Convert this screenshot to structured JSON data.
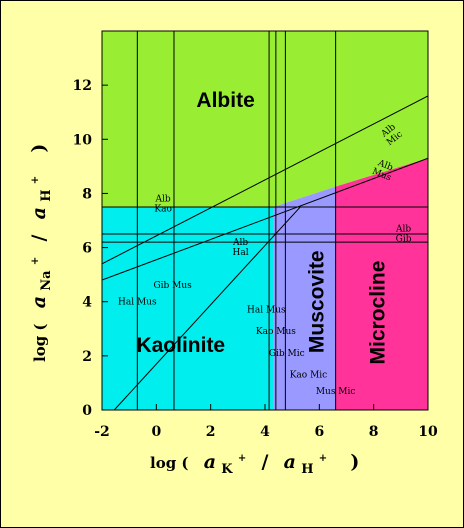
{
  "chart_data": {
    "type": "area",
    "title": "",
    "xlabel_parts": {
      "prefix": "log (",
      "num": "a",
      "num_sub": "K",
      "num_sup": "+",
      "slash": "/",
      "den": "a",
      "den_sub": "H",
      "den_sup": "+",
      "suffix": ")"
    },
    "ylabel_parts": {
      "prefix": "log (",
      "num": "a",
      "num_sub": "Na",
      "num_sup": "+",
      "slash": "/",
      "den": "a",
      "den_sub": "H",
      "den_sup": "+",
      "suffix": ")"
    },
    "xlim": [
      -2,
      10
    ],
    "ylim": [
      0,
      14
    ],
    "xticks": [
      -2,
      0,
      2,
      4,
      6,
      8,
      10
    ],
    "yticks": [
      0,
      2,
      4,
      6,
      8,
      10,
      12
    ],
    "xtick_labels": [
      "-2",
      "0",
      "2",
      "4",
      "6",
      "8",
      "10"
    ],
    "ytick_labels": [
      "0",
      "2",
      "4",
      "6",
      "8",
      "10",
      "12"
    ],
    "fields": [
      {
        "name": "Albite",
        "color": "#99ee33",
        "polygon": [
          [
            -2,
            7.5
          ],
          [
            4.3,
            7.5
          ],
          [
            6.6,
            8.25
          ],
          [
            10,
            9.3
          ],
          [
            10,
            14
          ],
          [
            -2,
            14
          ]
        ]
      },
      {
        "name": "Kaolinite",
        "color": "#00eeee",
        "polygon": [
          [
            -2,
            0
          ],
          [
            4.3,
            0
          ],
          [
            4.3,
            7.5
          ],
          [
            -2,
            7.5
          ]
        ]
      },
      {
        "name": "Muscovite",
        "color": "#9999ff",
        "polygon": [
          [
            4.3,
            0
          ],
          [
            6.6,
            0
          ],
          [
            6.6,
            8.25
          ],
          [
            4.3,
            7.5
          ]
        ]
      },
      {
        "name": "Microcline",
        "color": "#ff3399",
        "polygon": [
          [
            6.6,
            0
          ],
          [
            10,
            0
          ],
          [
            10,
            9.3
          ],
          [
            6.6,
            8.25
          ]
        ]
      }
    ],
    "boundary_lines": [
      {
        "kind": "vertical",
        "x": -0.7
      },
      {
        "kind": "vertical",
        "x": 0.65
      },
      {
        "kind": "vertical",
        "x": 4.15
      },
      {
        "kind": "vertical",
        "x": 4.4
      },
      {
        "kind": "vertical",
        "x": 4.75
      },
      {
        "kind": "vertical",
        "x": 6.6
      },
      {
        "kind": "horizontal",
        "y": 7.5
      },
      {
        "kind": "horizontal",
        "y": 6.5
      },
      {
        "kind": "horizontal",
        "y": 6.2
      },
      {
        "kind": "segment",
        "from": [
          -2,
          5.4
        ],
        "to": [
          10,
          11.6
        ]
      },
      {
        "kind": "segment",
        "from": [
          -2,
          4.8
        ],
        "to": [
          10,
          9.3
        ]
      },
      {
        "kind": "segment",
        "from": [
          -1.55,
          0
        ],
        "to": [
          5.3,
          7.5
        ]
      }
    ],
    "labels": {
      "field_names": [
        {
          "text": "Albite",
          "x": 2.55,
          "y": 11.4,
          "rotate": 0
        },
        {
          "text": "Kaolinite",
          "x": 0.9,
          "y": 2.35,
          "rotate": 0
        },
        {
          "text": "Muscovite",
          "x": 5.95,
          "y": 4.0,
          "rotate": -90
        },
        {
          "text": "Microcline",
          "x": 8.2,
          "y": 3.6,
          "rotate": -90
        }
      ],
      "reaction_labels": [
        {
          "lines": [
            "Alb",
            "Kao"
          ],
          "x": 0.25,
          "y": 7.7,
          "rotate": 0
        },
        {
          "lines": [
            "Alb",
            "Hal"
          ],
          "x": 3.1,
          "y": 6.1,
          "rotate": 0
        },
        {
          "lines": [
            "Alb",
            "Gib"
          ],
          "x": 9.1,
          "y": 6.6,
          "rotate": 0
        },
        {
          "lines": [
            "Alb",
            "Mus"
          ],
          "x": 8.4,
          "y": 8.95,
          "rotate": 22
        },
        {
          "lines": [
            "Alb",
            "Mic"
          ],
          "x": 8.6,
          "y": 10.25,
          "rotate": -38
        },
        {
          "lines": [
            "Gib Mus"
          ],
          "x": 0.6,
          "y": 4.5,
          "rotate": 0
        },
        {
          "lines": [
            "Hal Mus"
          ],
          "x": -0.7,
          "y": 3.9,
          "rotate": 0
        },
        {
          "lines": [
            "Hal Mus"
          ],
          "x": 4.05,
          "y": 3.6,
          "rotate": 0
        },
        {
          "lines": [
            "Kao Mus"
          ],
          "x": 4.4,
          "y": 2.8,
          "rotate": 0
        },
        {
          "lines": [
            "Gib Mic"
          ],
          "x": 4.8,
          "y": 2.0,
          "rotate": 0
        },
        {
          "lines": [
            "Kao Mic"
          ],
          "x": 5.6,
          "y": 1.2,
          "rotate": 0
        },
        {
          "lines": [
            "Mus Mic"
          ],
          "x": 6.6,
          "y": 0.6,
          "rotate": 0
        }
      ]
    }
  }
}
